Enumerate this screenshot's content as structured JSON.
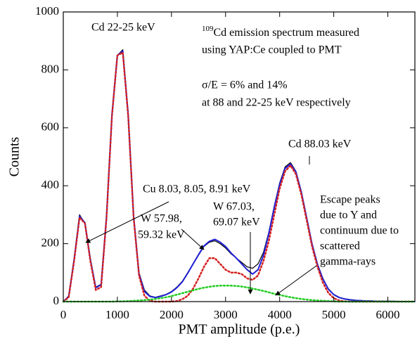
{
  "chart_data": {
    "type": "line",
    "xlabel": "PMT amplitude (p.e.)",
    "ylabel": "Counts",
    "xlim": [
      0,
      6500
    ],
    "ylim": [
      0,
      1000
    ],
    "xticks": [
      0,
      1000,
      2000,
      3000,
      4000,
      5000,
      6000
    ],
    "yticks": [
      0,
      200,
      400,
      600,
      800,
      1000
    ],
    "x": [
      0,
      100,
      200,
      300,
      400,
      500,
      600,
      700,
      800,
      900,
      1000,
      1100,
      1200,
      1300,
      1400,
      1500,
      1600,
      1700,
      1800,
      1900,
      2000,
      2100,
      2200,
      2300,
      2400,
      2500,
      2600,
      2700,
      2800,
      2900,
      3000,
      3100,
      3200,
      3300,
      3400,
      3500,
      3600,
      3700,
      3800,
      3900,
      4000,
      4100,
      4200,
      4300,
      4400,
      4500,
      4600,
      4700,
      4800,
      4900,
      5000,
      5100,
      5200,
      5300,
      5400,
      5500,
      5600,
      5700,
      5800,
      5900,
      6000,
      6100,
      6200,
      6300,
      6400,
      6500
    ],
    "series": [
      {
        "color": "#000000",
        "style": "solid",
        "width": 1.2,
        "values": [
          0,
          20,
          150,
          300,
          270,
          150,
          50,
          60,
          300,
          650,
          850,
          870,
          650,
          300,
          100,
          40,
          20,
          15,
          20,
          25,
          35,
          50,
          70,
          100,
          130,
          160,
          190,
          205,
          210,
          200,
          185,
          165,
          150,
          135,
          120,
          115,
          130,
          170,
          240,
          330,
          410,
          465,
          480,
          450,
          380,
          290,
          200,
          130,
          80,
          45,
          25,
          15,
          10,
          7,
          5,
          4,
          3,
          3,
          2,
          2,
          2,
          1,
          1,
          1,
          1,
          1
        ]
      },
      {
        "color": "#1f1fd6",
        "style": "solid",
        "width": 2,
        "values": [
          0,
          18,
          145,
          295,
          272,
          145,
          48,
          58,
          295,
          645,
          850,
          865,
          645,
          295,
          95,
          35,
          18,
          14,
          18,
          24,
          33,
          48,
          68,
          98,
          130,
          162,
          192,
          208,
          215,
          205,
          190,
          168,
          150,
          130,
          110,
          95,
          110,
          160,
          235,
          325,
          405,
          460,
          475,
          448,
          378,
          288,
          198,
          128,
          78,
          43,
          24,
          14,
          9,
          6,
          4,
          3,
          2,
          2,
          1,
          1,
          1,
          1,
          0,
          0,
          0,
          0
        ]
      },
      {
        "color": "#d42020",
        "style": "dotted",
        "width": 2.5,
        "values": [
          0,
          15,
          140,
          290,
          270,
          140,
          40,
          50,
          290,
          640,
          850,
          860,
          640,
          290,
          90,
          20,
          3,
          0,
          0,
          0,
          0,
          2,
          8,
          20,
          45,
          80,
          120,
          150,
          150,
          130,
          110,
          100,
          100,
          95,
          80,
          75,
          90,
          140,
          210,
          300,
          390,
          450,
          470,
          440,
          370,
          280,
          190,
          120,
          65,
          30,
          12,
          4,
          1,
          0,
          0,
          0,
          0,
          0,
          0,
          0,
          0,
          0,
          0,
          0,
          0,
          0
        ]
      },
      {
        "color": "#22cc22",
        "style": "dotted",
        "width": 2.5,
        "values": [
          0,
          0,
          0,
          0,
          0,
          0,
          0,
          0,
          0,
          0,
          1,
          1,
          2,
          3,
          4,
          5,
          7,
          9,
          12,
          15,
          19,
          24,
          29,
          34,
          39,
          44,
          48,
          51,
          54,
          55,
          55,
          55,
          54,
          52,
          49,
          45,
          41,
          37,
          32,
          27,
          23,
          19,
          15,
          12,
          9,
          7,
          5,
          4,
          3,
          2,
          1,
          0,
          0,
          0,
          0,
          0,
          0,
          0,
          0,
          0,
          0,
          0,
          0,
          0,
          0,
          0
        ]
      }
    ],
    "annotations": [
      {
        "text": "Cd 22-25 keV"
      },
      {
        "sup": "109",
        "text": "Cd emission spectrum measured"
      },
      {
        "text": "using YAP:Ce coupled to PMT"
      },
      {
        "text": "σ/E = 6% and 14%"
      },
      {
        "text": "at 88 and 22-25 keV respectively"
      },
      {
        "text": "Cd 88.03 keV"
      },
      {
        "text": "Cu 8.03, 8.05, 8.91 keV"
      },
      {
        "text": "W 57.98,"
      },
      {
        "text": "59.32 keV"
      },
      {
        "text": "W 67.03,"
      },
      {
        "text": "69.07 keV"
      },
      {
        "text": "Escape peaks"
      },
      {
        "text": "due to Y and"
      },
      {
        "text": "continuum due to"
      },
      {
        "text": "scattered"
      },
      {
        "text": "gamma-rays"
      }
    ]
  }
}
